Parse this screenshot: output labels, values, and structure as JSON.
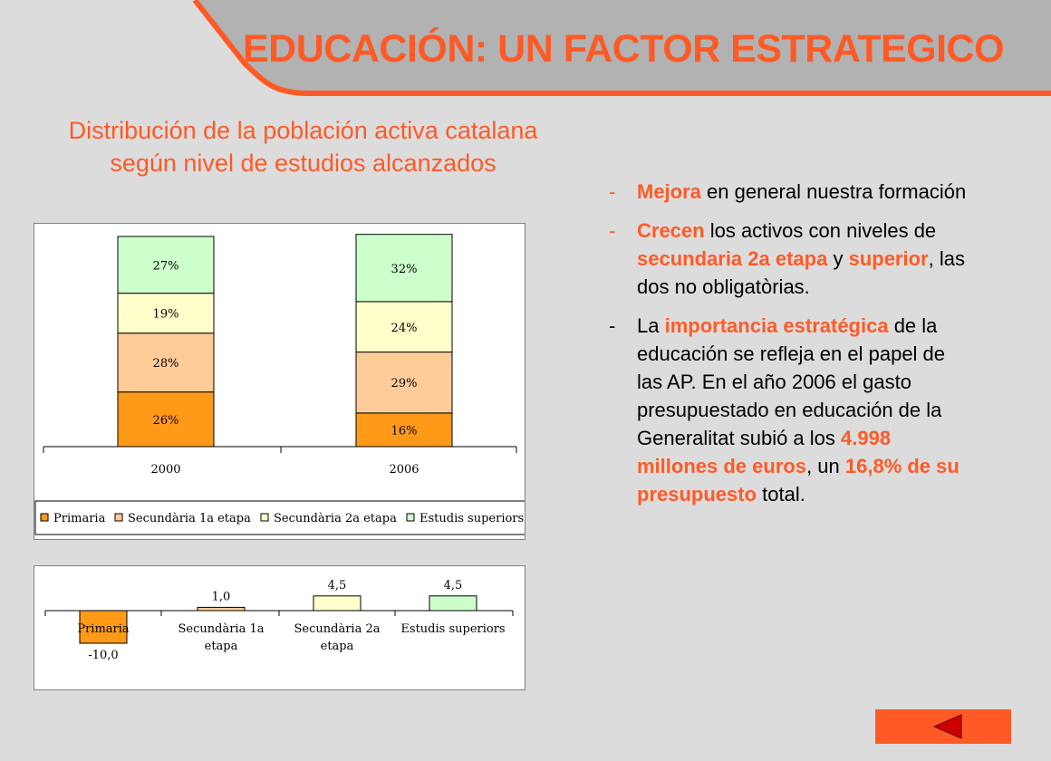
{
  "title": "EDUCACIÓN: UN FACTOR ESTRATEGICO",
  "subtitle": "Distribución de la población activa catalana según nivel de estudios alcanzados",
  "colors": {
    "accent": "#ff5a26",
    "header_gray": "#b2b2b2",
    "background": "#dcdcdc",
    "primaria": "#ff9a19",
    "secundaria1": "#ffcc99",
    "secundaria2": "#ffffcc",
    "superiors": "#ccffcc"
  },
  "chart_data": [
    {
      "type": "bar",
      "stacked": true,
      "categories": [
        "2000",
        "2006"
      ],
      "series": [
        {
          "name": "Primaria",
          "values": [
            26,
            16
          ],
          "labels": [
            "26%",
            "16%"
          ],
          "color": "#ff9a19"
        },
        {
          "name": "Secundària 1a etapa",
          "values": [
            28,
            29
          ],
          "labels": [
            "28%",
            "29%"
          ],
          "color": "#ffcc99"
        },
        {
          "name": "Secundària 2a etapa",
          "values": [
            19,
            24
          ],
          "labels": [
            "19%",
            "24%"
          ],
          "color": "#ffffcc"
        },
        {
          "name": "Estudis superiors",
          "values": [
            27,
            32
          ],
          "labels": [
            "27%",
            "32%"
          ],
          "color": "#ccffcc"
        }
      ],
      "ylim": [
        0,
        100
      ],
      "legend": "bottom"
    },
    {
      "type": "bar",
      "categories": [
        "Primaria",
        "Secundària 1a etapa",
        "Secundària 2a etapa",
        "Estudis superiors"
      ],
      "values": [
        -10.0,
        1.0,
        4.5,
        4.5
      ],
      "labels": [
        "-10,0",
        "1,0",
        "4,5",
        "4,5"
      ],
      "colors": [
        "#ff9a19",
        "#ffcc99",
        "#ffffcc",
        "#ccffcc"
      ]
    }
  ],
  "bullets": [
    {
      "dash": "-",
      "dash_orange": true,
      "parts": [
        {
          "text": "Mejora",
          "hl": true
        },
        {
          "text": " en general nuestra formación",
          "hl": false
        }
      ]
    },
    {
      "dash": "-",
      "dash_orange": true,
      "parts": [
        {
          "text": "Crecen",
          "hl": true
        },
        {
          "text": " los activos con niveles de ",
          "hl": false
        },
        {
          "text": "secundaria 2a etapa",
          "hl": true
        },
        {
          "text": " y ",
          "hl": false
        },
        {
          "text": "superior",
          "hl": true
        },
        {
          "text": ", las dos no obligatòrias.",
          "hl": false
        }
      ]
    },
    {
      "dash": "-",
      "dash_orange": false,
      "parts": [
        {
          "text": "La ",
          "hl": false
        },
        {
          "text": "importancia estratégica",
          "hl": true
        },
        {
          "text": " de la educación se refleja en el papel de las AP. En el año 2006 el gasto presupuestado en educación de la Generalitat subió a los ",
          "hl": false
        },
        {
          "text": "4.998 millones de euros",
          "hl": true
        },
        {
          "text": ", un ",
          "hl": false
        },
        {
          "text": "16,8% de su presupuesto",
          "hl": true
        },
        {
          "text": " total.",
          "hl": false
        }
      ]
    }
  ],
  "nav": {
    "back_icon": "triangle-left-icon"
  }
}
